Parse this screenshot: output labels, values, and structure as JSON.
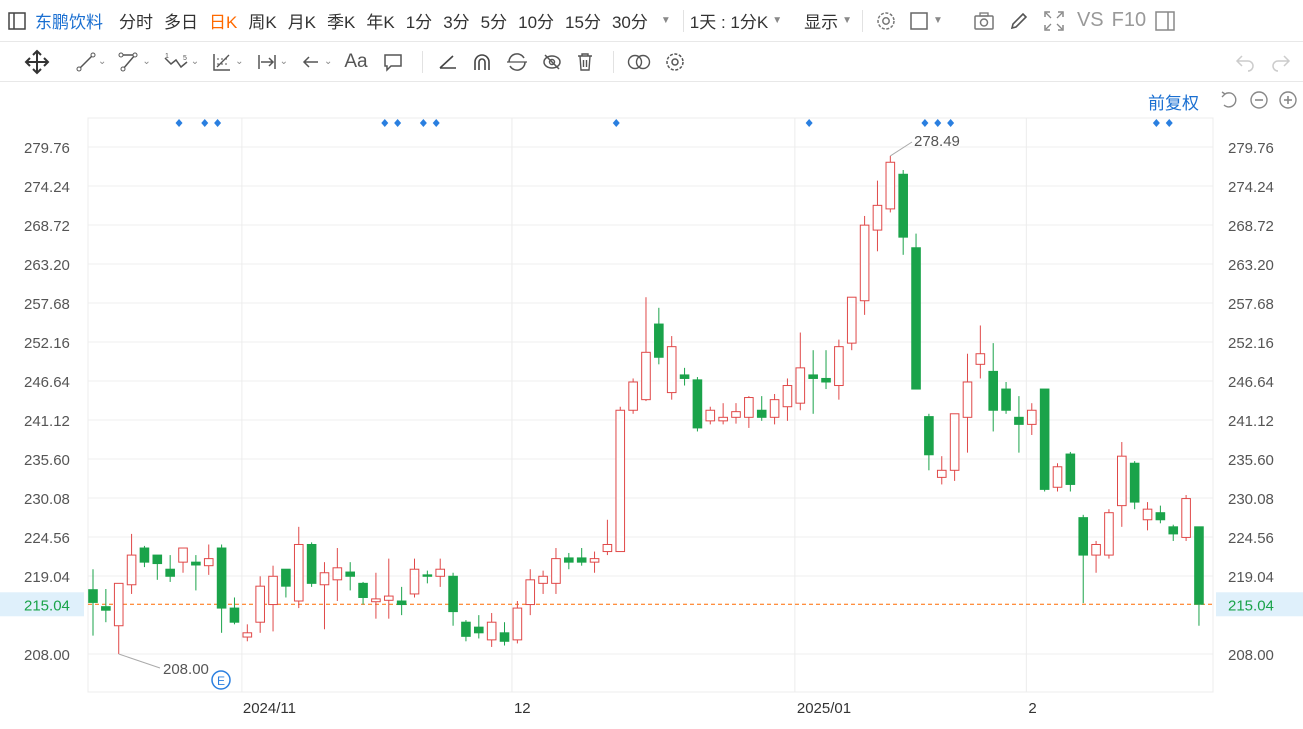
{
  "header": {
    "stock_name": "东鹏饮料",
    "periods": [
      "分时",
      "多日",
      "日K",
      "周K",
      "月K",
      "季K",
      "年K",
      "1分",
      "3分",
      "5分",
      "10分",
      "15分",
      "30分"
    ],
    "active_period": "日K",
    "range_select": "1天 : 1分K",
    "display_label": "显示",
    "vs_label": "VS",
    "f10_label": "F10"
  },
  "chart_controls": {
    "adjust_label": "前复权"
  },
  "icons": [
    "panel-icon",
    "settings-icon",
    "square-icon",
    "camera-icon",
    "pen-icon",
    "fullscreen-icon",
    "sidebar-icon",
    "move-icon",
    "line-icon",
    "channel-icon",
    "wave-icon",
    "fib-icon",
    "measure-icon",
    "arrow-icon",
    "text-icon",
    "comment-icon",
    "angle-icon",
    "arch-icon",
    "cycle-icon",
    "hide-icon",
    "trash-icon",
    "link-icon",
    "gear-icon",
    "undo-icon",
    "redo-icon",
    "reset-icon",
    "zoom-out-icon",
    "zoom-in-icon",
    "event-e-icon"
  ],
  "colors": {
    "up": "#e04848",
    "down": "#1aa34a",
    "accent": "#ff6a00",
    "link": "#1a6fd1",
    "current_price": "#1aa34a"
  },
  "chart_data": {
    "type": "candlestick",
    "ylim": [
      203.5,
      284.5
    ],
    "y_ticks": [
      279.76,
      274.24,
      268.72,
      263.2,
      257.68,
      252.16,
      246.64,
      241.12,
      235.6,
      230.08,
      224.56,
      219.04,
      208.0
    ],
    "x_tick_labels": [
      "2024/11",
      "12",
      "2025/01",
      "2"
    ],
    "current_price": "215.04",
    "max_label": "278.49",
    "min_label": "208.00",
    "event_marker": "E",
    "candles": [
      {
        "o": 217.1,
        "h": 220.0,
        "l": 210.6,
        "c": 215.3
      },
      {
        "o": 214.7,
        "h": 217.2,
        "l": 212.5,
        "c": 214.2
      },
      {
        "o": 212.0,
        "h": 218.0,
        "l": 208.0,
        "c": 218.0
      },
      {
        "o": 217.8,
        "h": 225.0,
        "l": 216.5,
        "c": 222.0
      },
      {
        "o": 223.0,
        "h": 223.3,
        "l": 220.3,
        "c": 221.0
      },
      {
        "o": 222.0,
        "h": 222.0,
        "l": 218.5,
        "c": 220.8
      },
      {
        "o": 220.0,
        "h": 222.0,
        "l": 218.2,
        "c": 219.0
      },
      {
        "o": 221.0,
        "h": 223.0,
        "l": 219.5,
        "c": 223.0
      },
      {
        "o": 221.0,
        "h": 222.0,
        "l": 217.0,
        "c": 220.6
      },
      {
        "o": 220.5,
        "h": 223.5,
        "l": 219.2,
        "c": 221.5
      },
      {
        "o": 223.0,
        "h": 223.5,
        "l": 211.0,
        "c": 214.5
      },
      {
        "o": 214.5,
        "h": 216.0,
        "l": 212.2,
        "c": 212.5
      },
      {
        "o": 210.4,
        "h": 212.2,
        "l": 209.8,
        "c": 211.0
      },
      {
        "o": 212.5,
        "h": 219.0,
        "l": 211.0,
        "c": 217.6
      },
      {
        "o": 215.0,
        "h": 220.5,
        "l": 211.2,
        "c": 219.0
      },
      {
        "o": 220.0,
        "h": 220.0,
        "l": 216.0,
        "c": 217.6
      },
      {
        "o": 215.5,
        "h": 226.0,
        "l": 214.5,
        "c": 223.5
      },
      {
        "o": 223.5,
        "h": 223.8,
        "l": 217.5,
        "c": 218.0
      },
      {
        "o": 217.8,
        "h": 221.0,
        "l": 211.5,
        "c": 219.5
      },
      {
        "o": 218.5,
        "h": 223.0,
        "l": 215.5,
        "c": 220.2
      },
      {
        "o": 219.6,
        "h": 221.0,
        "l": 217.0,
        "c": 219.0
      },
      {
        "o": 218.0,
        "h": 218.2,
        "l": 215.0,
        "c": 216.0
      },
      {
        "o": 215.4,
        "h": 219.5,
        "l": 213.0,
        "c": 215.8
      },
      {
        "o": 215.6,
        "h": 221.5,
        "l": 213.0,
        "c": 216.2
      },
      {
        "o": 215.5,
        "h": 217.5,
        "l": 213.5,
        "c": 215.0
      },
      {
        "o": 216.5,
        "h": 221.5,
        "l": 216.0,
        "c": 220.0
      },
      {
        "o": 219.2,
        "h": 219.8,
        "l": 218.0,
        "c": 219.0
      },
      {
        "o": 219.0,
        "h": 221.5,
        "l": 217.5,
        "c": 220.0
      },
      {
        "o": 219.0,
        "h": 219.5,
        "l": 212.0,
        "c": 214.0
      },
      {
        "o": 212.5,
        "h": 212.8,
        "l": 209.8,
        "c": 210.5
      },
      {
        "o": 211.8,
        "h": 213.5,
        "l": 210.2,
        "c": 211.0
      },
      {
        "o": 210.0,
        "h": 213.8,
        "l": 209.0,
        "c": 212.5
      },
      {
        "o": 211.0,
        "h": 212.5,
        "l": 209.2,
        "c": 209.8
      },
      {
        "o": 210.0,
        "h": 215.5,
        "l": 209.5,
        "c": 214.5
      },
      {
        "o": 215.0,
        "h": 220.0,
        "l": 213.5,
        "c": 218.5
      },
      {
        "o": 218.0,
        "h": 219.8,
        "l": 216.5,
        "c": 219.0
      },
      {
        "o": 218.0,
        "h": 223.0,
        "l": 216.5,
        "c": 221.5
      },
      {
        "o": 221.6,
        "h": 222.3,
        "l": 220.0,
        "c": 221.0
      },
      {
        "o": 221.6,
        "h": 223.0,
        "l": 220.5,
        "c": 221.0
      },
      {
        "o": 221.0,
        "h": 222.5,
        "l": 219.5,
        "c": 221.5
      },
      {
        "o": 222.5,
        "h": 227.0,
        "l": 222.0,
        "c": 223.5
      },
      {
        "o": 222.5,
        "h": 243.0,
        "l": 222.5,
        "c": 242.5
      },
      {
        "o": 242.5,
        "h": 247.0,
        "l": 242.0,
        "c": 246.5
      },
      {
        "o": 244.0,
        "h": 258.5,
        "l": 243.8,
        "c": 250.7
      },
      {
        "o": 254.7,
        "h": 257.0,
        "l": 249.0,
        "c": 250.0
      },
      {
        "o": 245.0,
        "h": 253.0,
        "l": 244.0,
        "c": 251.5
      },
      {
        "o": 247.5,
        "h": 248.5,
        "l": 246.0,
        "c": 247.0
      },
      {
        "o": 246.8,
        "h": 247.2,
        "l": 239.5,
        "c": 240.0
      },
      {
        "o": 241.0,
        "h": 243.0,
        "l": 240.5,
        "c": 242.5
      },
      {
        "o": 241.0,
        "h": 243.5,
        "l": 240.5,
        "c": 241.5
      },
      {
        "o": 241.5,
        "h": 243.5,
        "l": 240.6,
        "c": 242.3
      },
      {
        "o": 241.5,
        "h": 244.5,
        "l": 240.0,
        "c": 244.3
      },
      {
        "o": 242.5,
        "h": 244.5,
        "l": 241.0,
        "c": 241.5
      },
      {
        "o": 241.5,
        "h": 244.8,
        "l": 240.5,
        "c": 244.0
      },
      {
        "o": 243.0,
        "h": 247.0,
        "l": 241.0,
        "c": 246.0
      },
      {
        "o": 243.5,
        "h": 253.5,
        "l": 242.5,
        "c": 248.5
      },
      {
        "o": 247.5,
        "h": 251.0,
        "l": 242.0,
        "c": 247.0
      },
      {
        "o": 247.0,
        "h": 251.0,
        "l": 245.5,
        "c": 246.5
      },
      {
        "o": 246.0,
        "h": 252.5,
        "l": 244.0,
        "c": 251.5
      },
      {
        "o": 252.0,
        "h": 258.5,
        "l": 251.0,
        "c": 258.5
      },
      {
        "o": 258.0,
        "h": 270.0,
        "l": 256.0,
        "c": 268.7
      },
      {
        "o": 268.0,
        "h": 275.0,
        "l": 265.0,
        "c": 271.5
      },
      {
        "o": 271.0,
        "h": 278.5,
        "l": 270.5,
        "c": 277.6
      },
      {
        "o": 275.9,
        "h": 276.5,
        "l": 264.5,
        "c": 267.0
      },
      {
        "o": 265.5,
        "h": 267.5,
        "l": 245.5,
        "c": 245.5
      },
      {
        "o": 241.6,
        "h": 242.0,
        "l": 234.0,
        "c": 236.2
      },
      {
        "o": 233.0,
        "h": 236.0,
        "l": 232.0,
        "c": 234.0
      },
      {
        "o": 234.0,
        "h": 242.0,
        "l": 232.5,
        "c": 242.0
      },
      {
        "o": 241.5,
        "h": 250.5,
        "l": 236.5,
        "c": 246.5
      },
      {
        "o": 249.0,
        "h": 254.5,
        "l": 247.0,
        "c": 250.5
      },
      {
        "o": 248.0,
        "h": 252.0,
        "l": 239.5,
        "c": 242.5
      },
      {
        "o": 245.5,
        "h": 246.5,
        "l": 242.0,
        "c": 242.5
      },
      {
        "o": 241.5,
        "h": 244.5,
        "l": 236.5,
        "c": 240.5
      },
      {
        "o": 240.5,
        "h": 243.5,
        "l": 239.0,
        "c": 242.5
      },
      {
        "o": 245.5,
        "h": 245.5,
        "l": 231.0,
        "c": 231.3
      },
      {
        "o": 231.6,
        "h": 235.0,
        "l": 231.0,
        "c": 234.5
      },
      {
        "o": 236.3,
        "h": 236.6,
        "l": 231.0,
        "c": 232.0
      },
      {
        "o": 227.3,
        "h": 227.7,
        "l": 215.2,
        "c": 222.0
      },
      {
        "o": 222.0,
        "h": 224.0,
        "l": 219.5,
        "c": 223.5
      },
      {
        "o": 222.0,
        "h": 228.5,
        "l": 221.5,
        "c": 228.0
      },
      {
        "o": 229.0,
        "h": 238.0,
        "l": 226.0,
        "c": 236.0
      },
      {
        "o": 235.0,
        "h": 235.3,
        "l": 228.5,
        "c": 229.5
      },
      {
        "o": 227.0,
        "h": 229.5,
        "l": 225.5,
        "c": 228.5
      },
      {
        "o": 228.0,
        "h": 229.0,
        "l": 226.5,
        "c": 227.0
      },
      {
        "o": 226.0,
        "h": 226.3,
        "l": 224.0,
        "c": 225.0
      },
      {
        "o": 224.5,
        "h": 230.5,
        "l": 224.0,
        "c": 230.0
      },
      {
        "o": 226.0,
        "h": 226.0,
        "l": 212.0,
        "c": 215.04
      }
    ]
  }
}
